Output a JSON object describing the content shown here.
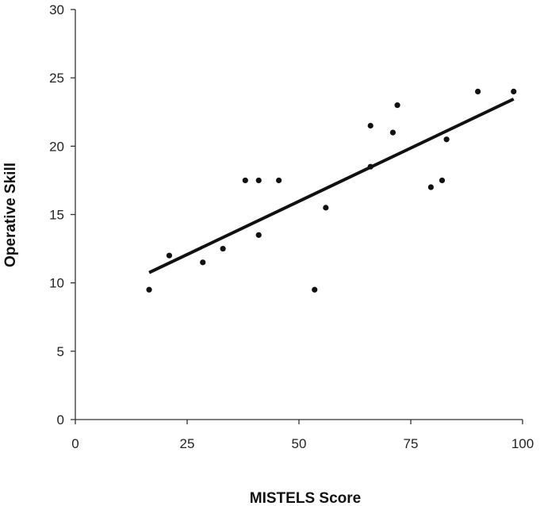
{
  "chart_data": {
    "type": "scatter",
    "title": "",
    "xlabel": "MISTELS Score",
    "ylabel": "Operative Skill",
    "xlim": [
      0,
      100
    ],
    "ylim": [
      0,
      30
    ],
    "x_ticks": [
      0,
      25,
      50,
      75,
      100
    ],
    "y_ticks": [
      0,
      5,
      10,
      15,
      20,
      25,
      30
    ],
    "grid": false,
    "legend": "none",
    "colors": {
      "points": "#111111",
      "trendline": "#111111",
      "axes": "#333333"
    },
    "series": [
      {
        "points": [
          {
            "x": 16.5,
            "y": 9.5
          },
          {
            "x": 21,
            "y": 12
          },
          {
            "x": 28.5,
            "y": 11.5
          },
          {
            "x": 33,
            "y": 12.5
          },
          {
            "x": 38,
            "y": 17.5
          },
          {
            "x": 41,
            "y": 17.5
          },
          {
            "x": 41,
            "y": 13.5
          },
          {
            "x": 45.5,
            "y": 17.5
          },
          {
            "x": 53.5,
            "y": 9.5
          },
          {
            "x": 56,
            "y": 15.5
          },
          {
            "x": 66,
            "y": 21.5
          },
          {
            "x": 66,
            "y": 18.5
          },
          {
            "x": 71,
            "y": 21
          },
          {
            "x": 72,
            "y": 23
          },
          {
            "x": 79.5,
            "y": 17
          },
          {
            "x": 82,
            "y": 17.5
          },
          {
            "x": 83,
            "y": 20.5
          },
          {
            "x": 90,
            "y": 24
          },
          {
            "x": 98,
            "y": 24
          }
        ]
      }
    ],
    "trendline": {
      "start": {
        "x": 16.5,
        "y": 10.75
      },
      "end": {
        "x": 98,
        "y": 23.45
      }
    }
  }
}
